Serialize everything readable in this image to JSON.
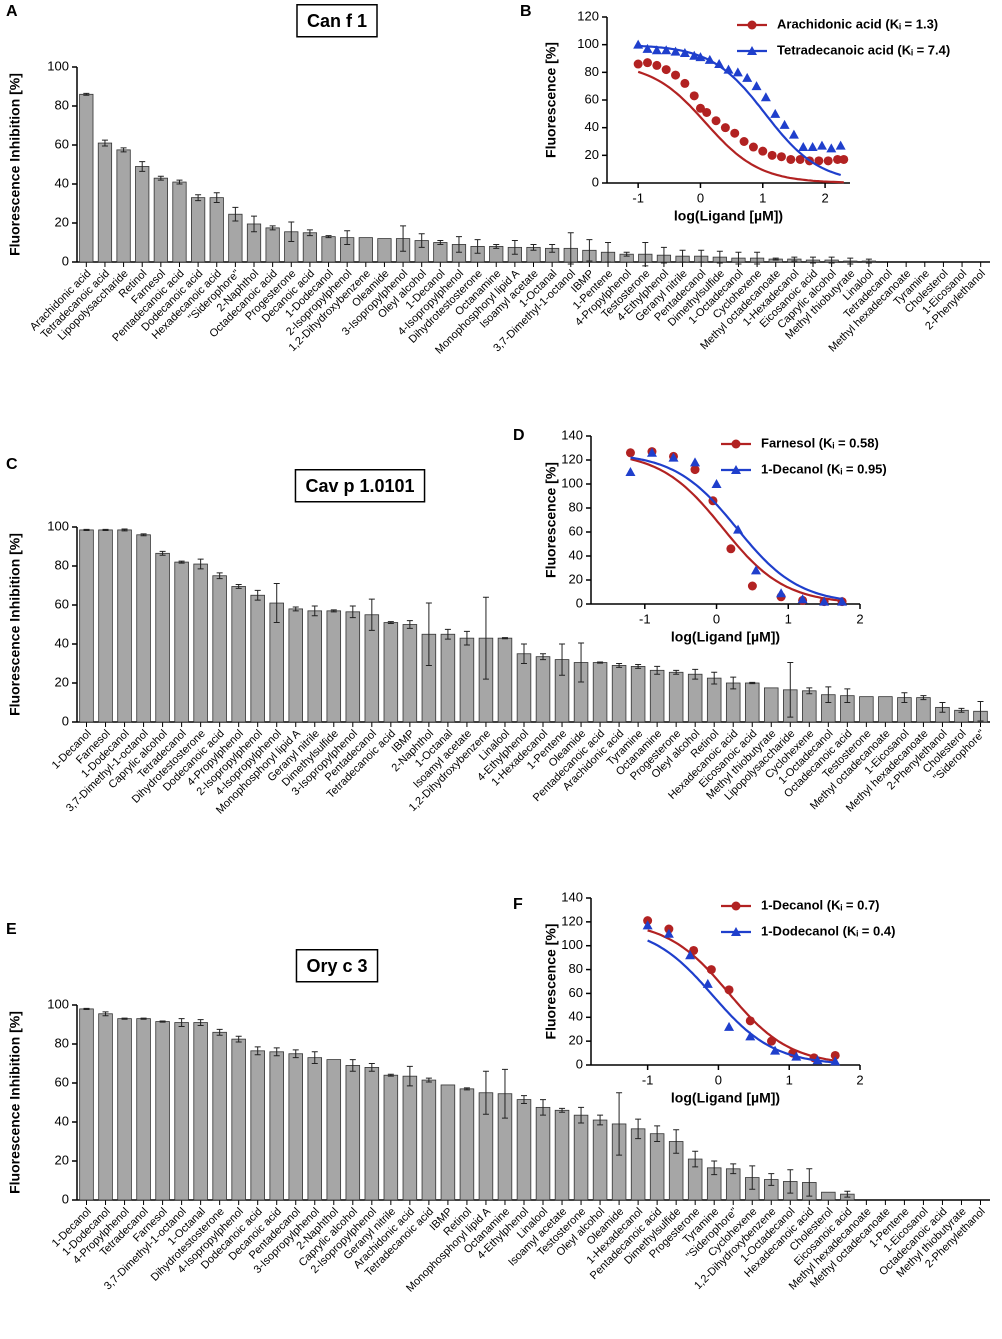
{
  "chart_data": [
    {
      "type": "bar",
      "panel": "A",
      "title": "Can f 1",
      "ylabel": "Fluorescence Inhibition [%]",
      "color": "#a6a6a6",
      "ylim": [
        0,
        100
      ],
      "yticks": [
        0,
        20,
        40,
        60,
        80,
        100
      ],
      "categories": [
        "Arachidonic acid",
        "Tetradecanoic acid",
        "Lipopolysaccharide",
        "Retinol",
        "Farnesol",
        "Pentadecanoic acid",
        "Dodecanoic acid",
        "Hexadecanoic acid",
        "\"Siderophore\"",
        "2-Naphthol",
        "Octadecanoic acid",
        "Progesterone",
        "Decanoic acid",
        "1-Dodecanol",
        "2-Isopropylphenol",
        "1,2-Dihydroxybenzene",
        "Oleamide",
        "3-Isopropylphenol",
        "Oleyl alcohol",
        "1-Decanol",
        "4-Isopropylphenol",
        "Dihydrotestosterone",
        "Octanamine",
        "Monophosphoryl lipid A",
        "Isoamyl acetate",
        "1-Octanal",
        "3,7-Dimethyl-1-octanol",
        "IBMP",
        "1-Pentene",
        "4-Propylphenol",
        "Testosterone",
        "4-Ethylphenol",
        "Geranyl nitrile",
        "Pentadecanol",
        "Dimethylsulfide",
        "1-Octadecanol",
        "Cyclohexene",
        "Methyl octadecanoate",
        "1-Hexadecanol",
        "Eicosanoic acid",
        "Caprylic alcohol",
        "Methyl thiobutyrate",
        "Linalool",
        "Tetradecanol",
        "Methyl hexadecanoate",
        "Tyramine",
        "Cholesterol",
        "1-Eicosanol",
        "2-Phenylethanol"
      ],
      "values": [
        86,
        61,
        57.5,
        49,
        43,
        41,
        33,
        33,
        24.5,
        19.5,
        17.5,
        15.5,
        15,
        13,
        12.5,
        12.5,
        12,
        12,
        11,
        10,
        9,
        8,
        8,
        7.5,
        7.5,
        7,
        7,
        6,
        5,
        4,
        4,
        3.5,
        3,
        3,
        2.5,
        2,
        2,
        1.5,
        1.5,
        1,
        1,
        0.5,
        0.5,
        0,
        0,
        0,
        0,
        0,
        0
      ],
      "errors": [
        0.5,
        1.5,
        1,
        2.5,
        1,
        1,
        1.5,
        2.5,
        3.5,
        4,
        1,
        5,
        1.5,
        0.5,
        3.5,
        0,
        0,
        6.5,
        3.5,
        1,
        4,
        3.5,
        1,
        3.5,
        1.5,
        2,
        8,
        5.5,
        5,
        1,
        6,
        4,
        3,
        3,
        3,
        3,
        3,
        0.5,
        1,
        1.5,
        1.5,
        1.5,
        1,
        0,
        0,
        0,
        0,
        0,
        0
      ]
    },
    {
      "type": "scatter",
      "panel": "B",
      "xlabel": "log(Ligand [µM])",
      "ylabel": "Fluorescence [%]",
      "xlim": [
        -1.5,
        2.4
      ],
      "xticks": [
        -1,
        0,
        1,
        2
      ],
      "ylim": [
        0,
        120
      ],
      "yticks": [
        0,
        20,
        40,
        60,
        80,
        100,
        120
      ],
      "series": [
        {
          "name": "Arachidonic acid (Kᵢ = 1.3)",
          "color": "#b22222",
          "marker": "circle",
          "x": [
            -1,
            -0.85,
            -0.7,
            -0.55,
            -0.4,
            -0.25,
            -0.1,
            0,
            0.1,
            0.25,
            0.4,
            0.55,
            0.7,
            0.85,
            1,
            1.15,
            1.3,
            1.45,
            1.6,
            1.75,
            1.9,
            2.05,
            2.2,
            2.3
          ],
          "y": [
            86,
            87,
            85,
            82,
            78,
            72,
            63,
            54,
            51,
            45,
            40,
            36,
            30,
            26,
            23,
            20,
            19,
            17,
            17,
            16,
            16,
            16,
            17,
            17
          ]
        },
        {
          "name": "Tetradecanoic acid (Kᵢ = 7.4)",
          "color": "#1f3fcc",
          "marker": "triangle",
          "x": [
            -1,
            -0.85,
            -0.7,
            -0.55,
            -0.4,
            -0.25,
            -0.1,
            0,
            0.15,
            0.3,
            0.45,
            0.6,
            0.75,
            0.9,
            1.05,
            1.2,
            1.35,
            1.5,
            1.65,
            1.8,
            1.95,
            2.1,
            2.25
          ],
          "y": [
            100,
            97,
            96,
            96,
            95,
            94,
            92,
            91,
            89,
            86,
            82,
            80,
            76,
            70,
            62,
            50,
            42,
            35,
            26,
            26,
            27,
            25,
            27
          ]
        }
      ]
    },
    {
      "type": "bar",
      "panel": "C",
      "title": "Cav p 1.0101",
      "ylabel": "Fluorescence Inhibition [%]",
      "color": "#a6a6a6",
      "ylim": [
        0,
        100
      ],
      "yticks": [
        0,
        20,
        40,
        60,
        80,
        100
      ],
      "categories": [
        "1-Decanol",
        "Farnesol",
        "1-Dodecanol",
        "3,7-Dimethyl-1-octanol",
        "Caprylic alcohol",
        "Tetradecanol",
        "Dihydrotestosterone",
        "Dodecanoic acid",
        "4-Propylphenol",
        "2-Isopropylphenol",
        "4-Isopropylphenol",
        "Monophosphoryl lipid A",
        "Geranyl nitrile",
        "Dimethylsulfide",
        "3-Isopropylphenol",
        "Pentadecanol",
        "Tetradecanoic acid",
        "IBMP",
        "2-Naphthol",
        "1-Octanal",
        "Isoamyl acetate",
        "1,2-Dihydroxybenzene",
        "Linalool",
        "4-Ethylphenol",
        "1-Hexadecanol",
        "1-Pentene",
        "Oleamide",
        "Pentadecanoic acid",
        "Arachidonic acid",
        "Tyramine",
        "Octanamine",
        "Progesterone",
        "Oleyl alcohol",
        "Retinol",
        "Hexadecanoic acid",
        "Eicosanoic acid",
        "Methyl thiobutyrate",
        "Lipopolysaccharide",
        "Cyclohexene",
        "1-Octadecanol",
        "Octadecanoic acid",
        "Testosterone",
        "Methyl octadecanoate",
        "1-Eicosanol",
        "Methyl hexadecanoate",
        "2-Phenylethanol",
        "Cholesterol",
        "\"Siderophore\""
      ],
      "values": [
        98.5,
        98.5,
        98.5,
        96,
        86.5,
        82,
        81,
        75,
        69.5,
        65,
        61,
        58,
        57,
        57,
        56.5,
        55,
        51,
        50,
        45,
        45,
        43,
        43,
        43,
        35,
        33.5,
        32,
        30.5,
        30.5,
        29,
        28.5,
        26.5,
        25.5,
        24.5,
        22.5,
        20,
        20,
        17.5,
        16.5,
        16,
        14,
        13.5,
        13,
        13,
        12.5,
        12.5,
        7.5,
        6,
        5.5
      ],
      "errors": [
        0.3,
        0.3,
        0.5,
        0.5,
        1,
        0.5,
        2.5,
        1.5,
        1,
        2.5,
        10,
        1,
        2.5,
        0.5,
        3,
        8,
        0.5,
        2,
        16,
        2.5,
        3.5,
        21,
        0.3,
        5,
        1.5,
        8,
        10,
        0.3,
        1,
        1,
        2,
        1,
        2.5,
        3,
        3,
        0.3,
        0,
        14,
        1.5,
        4,
        3.5,
        0,
        0,
        2.5,
        1,
        2.5,
        1,
        5
      ]
    },
    {
      "type": "scatter",
      "panel": "D",
      "xlabel": "log(Ligand [µM])",
      "ylabel": "Fluorescence [%]",
      "xlim": [
        -1.75,
        2
      ],
      "xticks": [
        -1,
        0,
        1,
        2
      ],
      "ylim": [
        0,
        140
      ],
      "yticks": [
        0,
        20,
        40,
        60,
        80,
        100,
        120,
        140
      ],
      "series": [
        {
          "name": "Farnesol (Kᵢ = 0.58)",
          "color": "#b22222",
          "marker": "circle",
          "x": [
            -1.2,
            -0.9,
            -0.6,
            -0.3,
            -0.05,
            0.2,
            0.5,
            0.9,
            1.2,
            1.5,
            1.75
          ],
          "y": [
            126,
            127,
            123,
            112,
            86,
            46,
            15,
            6,
            3,
            2,
            2
          ]
        },
        {
          "name": "1-Decanol (Kᵢ = 0.95)",
          "color": "#1f3fcc",
          "marker": "triangle",
          "x": [
            -1.2,
            -0.9,
            -0.6,
            -0.3,
            0,
            0.3,
            0.55,
            0.9,
            1.2,
            1.5,
            1.75
          ],
          "y": [
            110,
            126,
            122,
            118,
            100,
            62,
            28,
            9,
            4,
            2,
            2
          ]
        }
      ]
    },
    {
      "type": "bar",
      "panel": "E",
      "title": "Ory c 3",
      "ylabel": "Fluorescence Inhibition [%]",
      "color": "#a6a6a6",
      "ylim": [
        0,
        100
      ],
      "yticks": [
        0,
        20,
        40,
        60,
        80,
        100
      ],
      "categories": [
        "1-Decanol",
        "1-Dodecanol",
        "4-Propylphenol",
        "Tetradecanol",
        "Farnesol",
        "3,7-Dimethyl-1-octanol",
        "1-Octanal",
        "Dihydrotestosterone",
        "4-Isopropylphenol",
        "Dodecanoic acid",
        "Decanoic acid",
        "Pentadecanol",
        "3-Isopropylphenol",
        "2-Naphthol",
        "Caprylic alcohol",
        "2-Isopropylphenol",
        "Geranyl nitrile",
        "Arachidonic acid",
        "Tetradecanoic acid",
        "IBMP",
        "Retinol",
        "Monophosphoryl lipid A",
        "Octanamine",
        "4-Ethylphenol",
        "Linalool",
        "Isoamyl acetate",
        "Testosterone",
        "Oleyl alcohol",
        "Oleamide",
        "1-Hexadecanol",
        "Pentadecanoic acid",
        "Dimethylsulfide",
        "Progesterone",
        "Tyramine",
        "\"Siderophore\"",
        "Cyclohexene",
        "1,2-Dihydroxybenzene",
        "1-Octadecanol",
        "Hexadecanoic acid",
        "Cholesterol",
        "Eicosanoic acid",
        "Methyl hexadecanoate",
        "Methyl octadecanoate",
        "1-Pentene",
        "1-Eicosanol",
        "Octadecanoic acid",
        "Methyl thiobutyrate",
        "2-Phenylethanol"
      ],
      "values": [
        98,
        95.5,
        93,
        93,
        91.5,
        91,
        91,
        86,
        82.5,
        76.5,
        76,
        75,
        73,
        72,
        69,
        68,
        64,
        63.5,
        61.5,
        59,
        57,
        55,
        54.5,
        51.5,
        47.5,
        46,
        43.5,
        41,
        39,
        36.5,
        34,
        30,
        21,
        16.5,
        16,
        11.5,
        10.5,
        9.5,
        9,
        4,
        3,
        0,
        0,
        0,
        0,
        0,
        0,
        0
      ],
      "errors": [
        0.3,
        1,
        0.3,
        0.3,
        0.3,
        2,
        1.5,
        1.5,
        1.5,
        2,
        2,
        2,
        3,
        0,
        3,
        2,
        0.5,
        5,
        1,
        0,
        0.5,
        11,
        12.5,
        2,
        4,
        1,
        4,
        2.5,
        16,
        5,
        4,
        6,
        4,
        3.5,
        2.5,
        6,
        3,
        6,
        7,
        0,
        1.5,
        0,
        0,
        0,
        0,
        0,
        0,
        0
      ]
    },
    {
      "type": "scatter",
      "panel": "F",
      "xlabel": "log(Ligand [µM])",
      "ylabel": "Fluorescence [%]",
      "xlim": [
        -1.8,
        2
      ],
      "xticks": [
        -1,
        0,
        1,
        2
      ],
      "ylim": [
        0,
        140
      ],
      "yticks": [
        0,
        20,
        40,
        60,
        80,
        100,
        120,
        140
      ],
      "series": [
        {
          "name": "1-Decanol (Kᵢ = 0.7)",
          "color": "#b22222",
          "marker": "circle",
          "x": [
            -1,
            -0.7,
            -0.35,
            -0.1,
            0.15,
            0.45,
            0.75,
            1.05,
            1.35,
            1.65
          ],
          "y": [
            121,
            114,
            96,
            80,
            63,
            37,
            20,
            10,
            6,
            8
          ]
        },
        {
          "name": "1-Dodecanol (Kᵢ = 0.4)",
          "color": "#1f3fcc",
          "marker": "triangle",
          "x": [
            -1,
            -0.7,
            -0.4,
            -0.15,
            0.15,
            0.45,
            0.8,
            1.1,
            1.4,
            1.65
          ],
          "y": [
            117,
            110,
            92,
            68,
            32,
            24,
            12,
            7,
            4,
            3
          ]
        }
      ]
    }
  ]
}
